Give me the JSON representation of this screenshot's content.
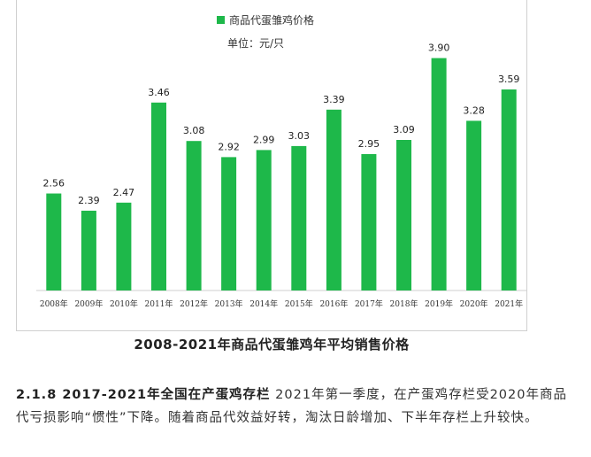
{
  "chart_data": {
    "type": "bar",
    "legend": "商品代蛋雏鸡价格",
    "unit": "单位：元/只",
    "categories": [
      "2008年",
      "2009年",
      "2010年",
      "2011年",
      "2012年",
      "2013年",
      "2014年",
      "2015年",
      "2016年",
      "2017年",
      "2018年",
      "2019年",
      "2020年",
      "2021年"
    ],
    "values": [
      2.56,
      2.39,
      2.47,
      3.46,
      3.08,
      2.92,
      2.99,
      3.03,
      3.39,
      2.95,
      3.09,
      3.9,
      3.28,
      3.59
    ],
    "ylim": [
      1.6,
      4.3
    ],
    "grid": false,
    "legend_position": "top-center",
    "bar_color": "#1eb84a"
  },
  "caption": "2008-2021年商品代蛋雏鸡年平均销售价格",
  "section": {
    "heading": "2.1.8 2017-2021年全国在产蛋鸡存栏",
    "text": " 2021年第一季度，在产蛋鸡存栏受2020年商品代亏损影响“惯性”下降。随着商品代效益好转，淘汰日龄增加、下半年存栏上升较快。"
  }
}
